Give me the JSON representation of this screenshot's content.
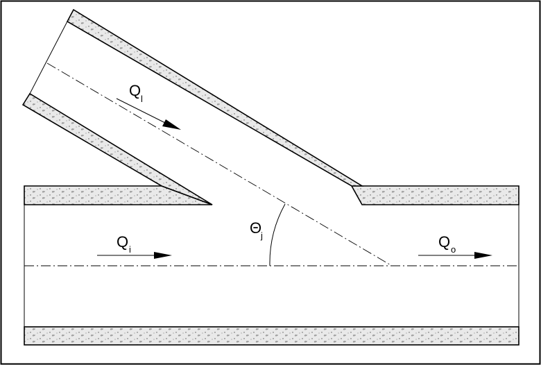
{
  "labels": {
    "lateral_flow": {
      "main": "Q",
      "sub": "l"
    },
    "inflow": {
      "main": "Q",
      "sub": "i"
    },
    "outflow": {
      "main": "Q",
      "sub": "o"
    },
    "junction_angle": {
      "main": "Θ",
      "sub": "j"
    }
  },
  "colors": {
    "line": "#000000",
    "pipe_wall_fill": "#e9e9e9",
    "stipple": "#555555",
    "background": "#ffffff"
  }
}
